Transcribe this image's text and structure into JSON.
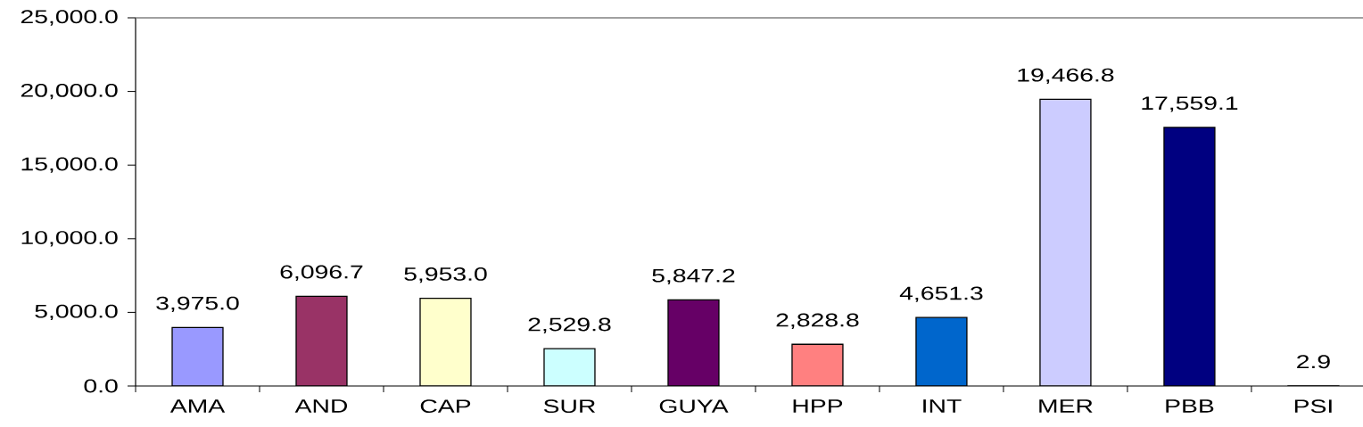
{
  "chart_data": {
    "type": "bar",
    "categories": [
      "AMA",
      "AND",
      "CAP",
      "SUR",
      "GUYA",
      "HPP",
      "INT",
      "MER",
      "PBB",
      "PSI"
    ],
    "values": [
      3975.0,
      6096.7,
      5953.0,
      2529.8,
      5847.2,
      2828.8,
      4651.3,
      19466.8,
      17559.1,
      2.9
    ],
    "colors": [
      "#9999ff",
      "#993366",
      "#ffffcc",
      "#ccffff",
      "#660066",
      "#ff8080",
      "#0066cc",
      "#ccccff",
      "#000080",
      "#ff00ff"
    ],
    "value_labels": [
      "3,975.0",
      "6,096.7",
      "5,953.0",
      "2,529.8",
      "5,847.2",
      "2,828.8",
      "4,651.3",
      "19,466.8",
      "17,559.1",
      "2.9"
    ],
    "ylim": [
      0,
      25000
    ],
    "yticks": [
      {
        "value": 0,
        "label": "0.0"
      },
      {
        "value": 5000,
        "label": "5,000.0"
      },
      {
        "value": 10000,
        "label": "10,000.0"
      },
      {
        "value": 15000,
        "label": "15,000.0"
      },
      {
        "value": 20000,
        "label": "20,000.0"
      },
      {
        "value": 25000,
        "label": "25,000.0"
      }
    ]
  }
}
